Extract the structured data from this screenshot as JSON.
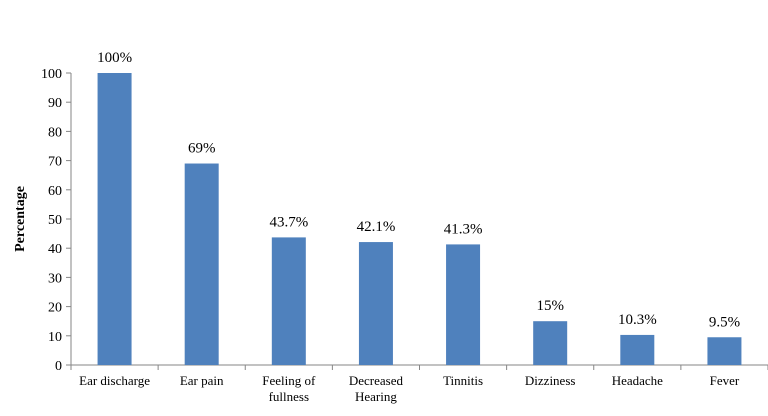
{
  "chart_data": {
    "type": "bar",
    "title": "",
    "xlabel": "",
    "ylabel": "Percentage",
    "ylim": [
      0,
      100
    ],
    "yticks": [
      0,
      10,
      20,
      30,
      40,
      50,
      60,
      70,
      80,
      90,
      100
    ],
    "grid": false,
    "legend": "none",
    "bar_color": "#4f81bd",
    "categories": [
      [
        "Ear discharge"
      ],
      [
        "Ear pain"
      ],
      [
        "Feeling of",
        "fullness"
      ],
      [
        "Decreased",
        "Hearing"
      ],
      [
        "Tinnitis"
      ],
      [
        "Dizziness"
      ],
      [
        "Headache"
      ],
      [
        "Fever"
      ]
    ],
    "values": [
      100,
      69,
      43.7,
      42.1,
      41.3,
      15,
      10.3,
      9.5
    ],
    "data_labels": [
      "100%",
      "69%",
      "43.7%",
      "42.1%",
      "41.3%",
      "15%",
      "10.3%",
      "9.5%"
    ]
  }
}
